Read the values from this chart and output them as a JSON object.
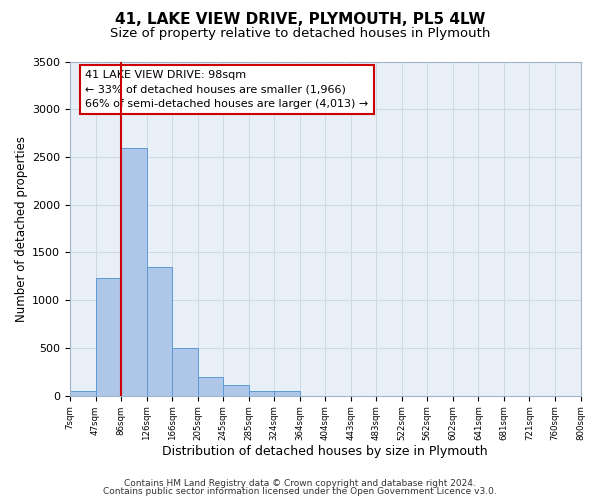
{
  "title": "41, LAKE VIEW DRIVE, PLYMOUTH, PL5 4LW",
  "subtitle": "Size of property relative to detached houses in Plymouth",
  "xlabel": "Distribution of detached houses by size in Plymouth",
  "ylabel": "Number of detached properties",
  "bin_labels": [
    "7sqm",
    "47sqm",
    "86sqm",
    "126sqm",
    "166sqm",
    "205sqm",
    "245sqm",
    "285sqm",
    "324sqm",
    "364sqm",
    "404sqm",
    "443sqm",
    "483sqm",
    "522sqm",
    "562sqm",
    "602sqm",
    "641sqm",
    "681sqm",
    "721sqm",
    "760sqm",
    "800sqm"
  ],
  "bar_values": [
    50,
    1230,
    2590,
    1350,
    500,
    200,
    115,
    50,
    45,
    0,
    0,
    0,
    0,
    0,
    0,
    0,
    0,
    0,
    0,
    0
  ],
  "bar_color": "#aec6e8",
  "bar_edge_color": "#5b9bd5",
  "vline_x": 2,
  "vline_color": "#cc0000",
  "annotation_line1": "41 LAKE VIEW DRIVE: 98sqm",
  "annotation_line2": "← 33% of detached houses are smaller (1,966)",
  "annotation_line3": "66% of semi-detached houses are larger (4,013) →",
  "box_edge_color": "#cc0000",
  "ylim": [
    0,
    3500
  ],
  "yticks": [
    0,
    500,
    1000,
    1500,
    2000,
    2500,
    3000,
    3500
  ],
  "grid_color": "#cdd9e5",
  "footnote_line1": "Contains HM Land Registry data © Crown copyright and database right 2024.",
  "footnote_line2": "Contains public sector information licensed under the Open Government Licence v3.0.",
  "title_fontsize": 11,
  "subtitle_fontsize": 9.5,
  "xlabel_fontsize": 9,
  "ylabel_fontsize": 8.5,
  "annotation_fontsize": 8,
  "footnote_fontsize": 6.5
}
